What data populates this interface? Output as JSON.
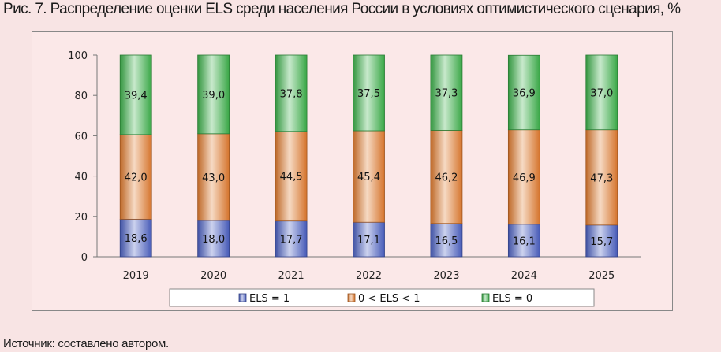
{
  "figure": {
    "title": "Рис. 7. Распределение оценки ELS среди населения России в условиях оптимистического сценария, %",
    "source": "Источник: составлено автором."
  },
  "chart_data": {
    "type": "bar",
    "stacked": true,
    "categories": [
      "2019",
      "2020",
      "2021",
      "2022",
      "2023",
      "2024",
      "2025"
    ],
    "ylim": [
      0,
      100
    ],
    "yticks": [
      0,
      20,
      40,
      60,
      80,
      100
    ],
    "grid": false,
    "legend_position": "bottom",
    "series": [
      {
        "name": "ELS = 1",
        "color": "#4a5fc1",
        "values": [
          18.6,
          18.0,
          17.7,
          17.1,
          16.5,
          16.1,
          15.7
        ],
        "labels": [
          "18,6",
          "18,0",
          "17,7",
          "17,1",
          "16,5",
          "16,1",
          "15,7"
        ]
      },
      {
        "name": "0 < ELS < 1",
        "color": "#e07a2e",
        "values": [
          42.0,
          43.0,
          44.5,
          45.4,
          46.2,
          46.9,
          47.3
        ],
        "labels": [
          "42,0",
          "43,0",
          "44,5",
          "45,4",
          "46,2",
          "46,9",
          "47,3"
        ]
      },
      {
        "name": "ELS = 0",
        "color": "#3cb04a",
        "values": [
          39.4,
          39.0,
          37.8,
          37.5,
          37.3,
          36.9,
          37.0
        ],
        "labels": [
          "39,4",
          "39,0",
          "37,8",
          "37,5",
          "37,3",
          "36,9",
          "37,0"
        ]
      }
    ]
  }
}
